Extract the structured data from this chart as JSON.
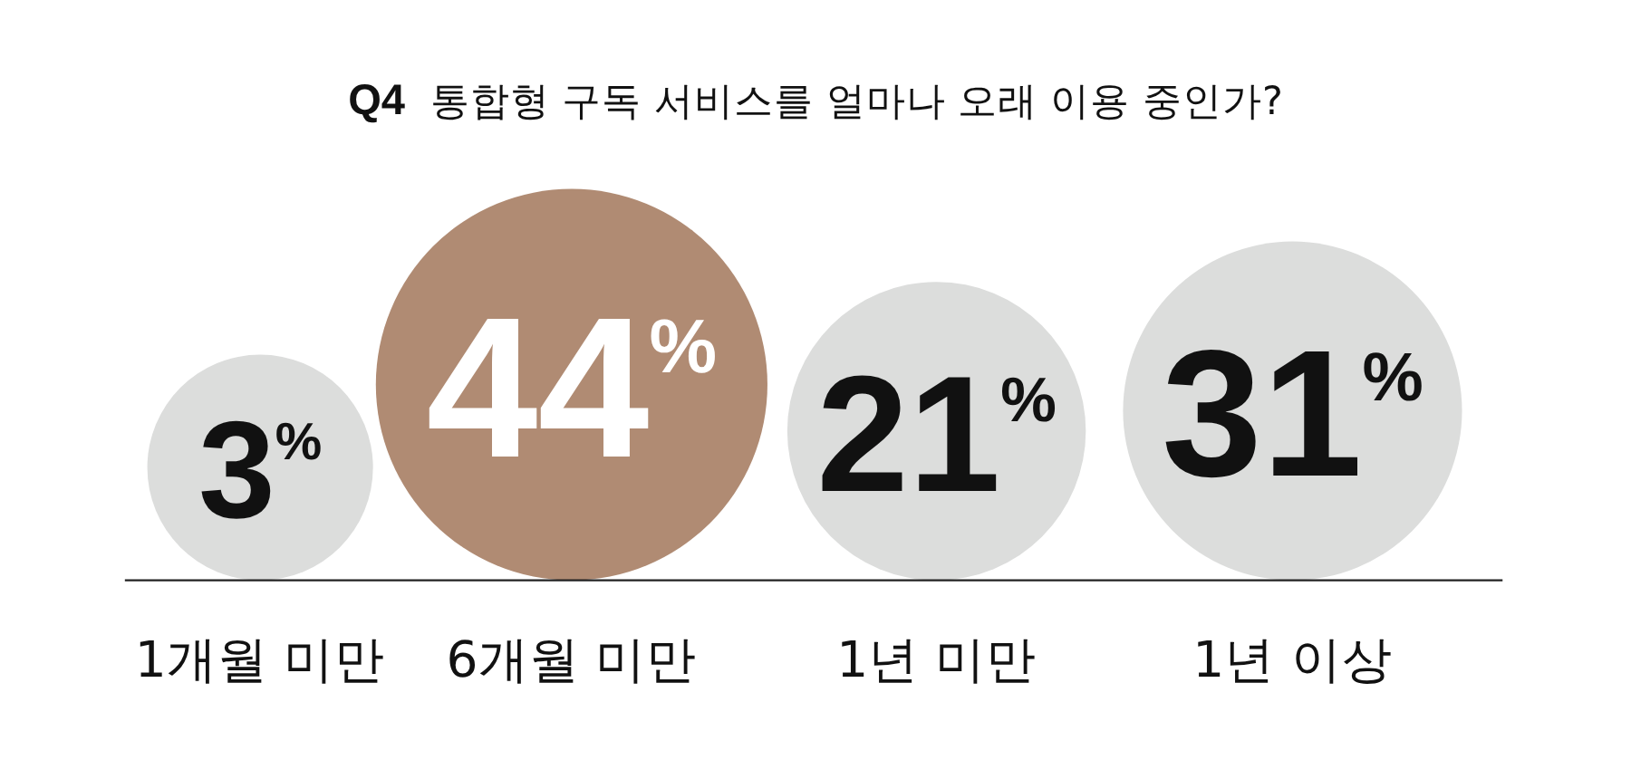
{
  "chart_data": {
    "type": "other",
    "title": "Q4 통합형 구독 서비스를 얼마나 오래 이용 중인가?",
    "categories": [
      "1개월 미만",
      "6개월 미만",
      "1년 미만",
      "1년 이상"
    ],
    "values": [
      3,
      44,
      21,
      31
    ],
    "colors": [
      "#dcdddc",
      "#b08b73",
      "#dcdddc",
      "#dcdddc"
    ],
    "value_labels": [
      "3$^{%}$",
      "44$^{%}$",
      "21$^{%}$",
      "31$^{%}$"
    ]
  }
}
